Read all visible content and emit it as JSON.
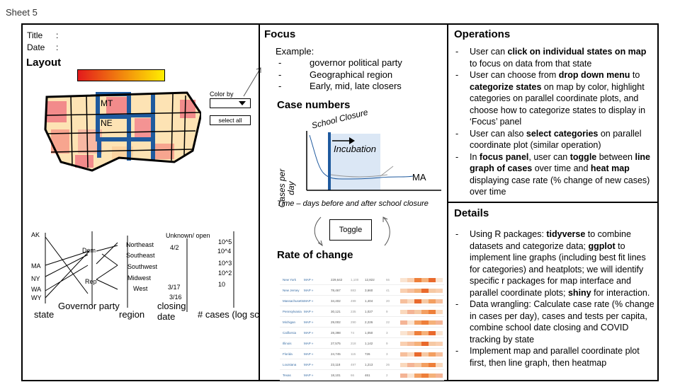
{
  "sheet_label": "Sheet 5",
  "layout_panel": {
    "title_label": "Title",
    "date_label": "Date",
    "colon": ":",
    "heading": "Layout",
    "color_by_label": "Color by",
    "select_all_label": "select all",
    "map_labels": [
      "MT",
      "NE"
    ],
    "gradient_colors": [
      "#e31a1c",
      "#ffee00"
    ],
    "parallel": {
      "state_ticks": [
        "AK",
        "MA",
        "NY",
        "WA",
        "WY"
      ],
      "party_ticks": [
        "Dem",
        "Rep"
      ],
      "region_ticks": [
        "Northeast",
        "Southeast",
        "Southwest",
        "Midwest",
        "West"
      ],
      "closing_ticks": [
        "Unknown/ open",
        "4/2",
        "3/17",
        "3/16"
      ],
      "cases_ticks": [
        "10^5",
        "10^4",
        "10^3",
        "10^2",
        "10"
      ],
      "axis_labels": {
        "state": "state",
        "party": "Governor party",
        "region": "region",
        "closing": "closing date",
        "cases": "# cases (log scale)"
      }
    }
  },
  "focus_panel": {
    "heading": "Focus",
    "example_label": "Example:",
    "examples": [
      "governor political party",
      "Geographical region",
      "Early, mid, late closers"
    ],
    "case_numbers_heading": "Case numbers",
    "school_closure_label": "School Closure",
    "incubation_label": "Incubation",
    "y_axis_label": "Cases per day",
    "series_label": "MA",
    "x_axis_caption": "Time – days before and after school closure",
    "toggle_label": "Toggle",
    "rate_heading": "Rate of change",
    "table_rows": [
      {
        "state": "New York",
        "link": "MAP »",
        "a": "229,642",
        "b": "1,100",
        "c": "12,822",
        "d": "66"
      },
      {
        "state": "New Jersey",
        "link": "MAP »",
        "a": "78,467",
        "b": "883",
        "c": "3,660",
        "d": "41"
      },
      {
        "state": "Massachusetts",
        "link": "MAP »",
        "a": "34,402",
        "b": "499",
        "c": "1,404",
        "d": "20"
      },
      {
        "state": "Pennsylvania",
        "link": "MAP »",
        "a": "30,121",
        "b": "235",
        "c": "1,027",
        "d": "9"
      },
      {
        "state": "Michigan",
        "link": "MAP »",
        "a": "29,002",
        "b": "290",
        "c": "2,226",
        "d": "22"
      },
      {
        "state": "California",
        "link": "MAP »",
        "a": "28,398",
        "b": "74",
        "c": "1,050",
        "d": "3"
      },
      {
        "state": "Illinois",
        "link": "MAP »",
        "a": "27,575",
        "b": "218",
        "c": "1,142",
        "d": "9"
      },
      {
        "state": "Florida",
        "link": "MAP »",
        "a": "24,745",
        "b": "115",
        "c": "726",
        "d": "3"
      },
      {
        "state": "Louisiana",
        "link": "MAP »",
        "a": "23,118",
        "b": "497",
        "c": "1,213",
        "d": "26"
      },
      {
        "state": "Texas",
        "link": "MAP »",
        "a": "18,101",
        "b": "66",
        "c": "461",
        "d": "2"
      }
    ]
  },
  "operations_panel": {
    "heading": "Operations",
    "items": [
      [
        {
          "t": "User can ",
          "b": false
        },
        {
          "t": "click on individual states on map",
          "b": true
        },
        {
          "t": " to focus on data from that state",
          "b": false
        }
      ],
      [
        {
          "t": "User can choose from ",
          "b": false
        },
        {
          "t": "drop down menu",
          "b": true
        },
        {
          "t": " to ",
          "b": false
        },
        {
          "t": "categorize states",
          "b": true
        },
        {
          "t": " on map by color, highlight categories on parallel coordinate plots, and choose how to categorize states to display in ‘Focus’ panel",
          "b": false
        }
      ],
      [
        {
          "t": "User can also ",
          "b": false
        },
        {
          "t": "select categories",
          "b": true
        },
        {
          "t": " on parallel coordinate plot (similar operation)",
          "b": false
        }
      ],
      [
        {
          "t": "In ",
          "b": false
        },
        {
          "t": "focus panel",
          "b": true
        },
        {
          "t": ", user can ",
          "b": false
        },
        {
          "t": "toggle",
          "b": true
        },
        {
          "t": " between ",
          "b": false
        },
        {
          "t": "line graph of cases",
          "b": true
        },
        {
          "t": " over time and ",
          "b": false
        },
        {
          "t": "heat map",
          "b": true
        },
        {
          "t": " displaying case rate (% change of new cases) over time",
          "b": false
        }
      ]
    ]
  },
  "details_panel": {
    "heading": "Details",
    "items": [
      [
        {
          "t": "Using R packages: ",
          "b": false
        },
        {
          "t": "tidyverse",
          "b": true
        },
        {
          "t": " to combine datasets and categorize data; ",
          "b": false
        },
        {
          "t": "ggplot",
          "b": true
        },
        {
          "t": " to implement line graphs (including best fit lines for categories) and heatplots; we will identify specific r packages for map interface and parallel coordinate plots; ",
          "b": false
        },
        {
          "t": "shiny",
          "b": true
        },
        {
          "t": " for interaction.",
          "b": false
        }
      ],
      [
        {
          "t": "Data wrangling: Calculate case rate (% change in cases per day), cases and tests per capita, combine school date closing and COVID tracking by state",
          "b": false
        }
      ],
      [
        {
          "t": "Implement map and parallel coordinate plot first, then line graph, then heatmap",
          "b": false
        }
      ]
    ]
  }
}
